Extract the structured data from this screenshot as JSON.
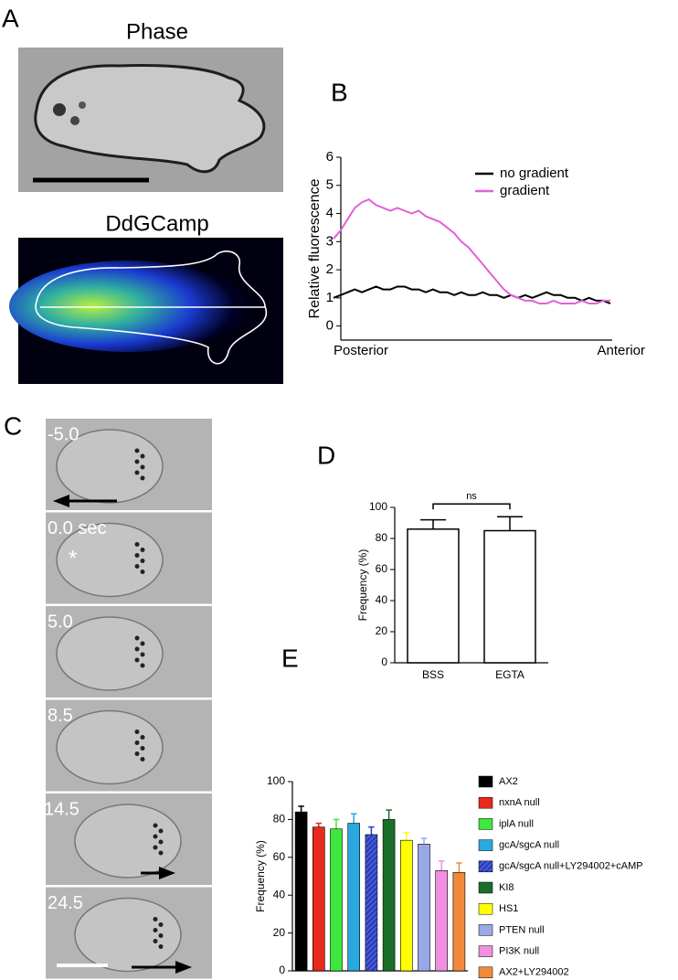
{
  "panel_labels": [
    "A",
    "B",
    "C",
    "D",
    "E"
  ],
  "panel_a": {
    "top_title": "Phase",
    "bottom_title": "DdGCamp"
  },
  "panel_c": {
    "times": [
      "-5.0",
      "0.0 sec",
      "5.0",
      "8.5",
      "14.5",
      "24.5"
    ],
    "marker": "*"
  },
  "chart_data": [
    {
      "type": "line",
      "y_label": "Relative fluorescence",
      "x_start_label": "Posterior",
      "x_end_label": "Anterior",
      "ylim": [
        -0.5,
        6
      ],
      "yticks": [
        0,
        1,
        2,
        3,
        4,
        5,
        6
      ],
      "series": [
        {
          "name": "no gradient",
          "color": "#000000",
          "values": [
            1.0,
            1.1,
            1.2,
            1.3,
            1.2,
            1.3,
            1.4,
            1.3,
            1.3,
            1.4,
            1.4,
            1.3,
            1.3,
            1.2,
            1.3,
            1.2,
            1.2,
            1.1,
            1.2,
            1.1,
            1.1,
            1.2,
            1.1,
            1.1,
            1.0,
            1.1,
            1.0,
            1.1,
            1.0,
            1.1,
            1.2,
            1.1,
            1.1,
            1.0,
            1.0,
            0.9,
            1.0,
            0.9,
            0.9,
            0.8
          ]
        },
        {
          "name": "gradient",
          "color": "#e060d8",
          "values": [
            3.1,
            3.4,
            3.8,
            4.2,
            4.4,
            4.5,
            4.3,
            4.2,
            4.1,
            4.2,
            4.1,
            4.0,
            4.1,
            3.9,
            3.8,
            3.7,
            3.5,
            3.3,
            3.0,
            2.8,
            2.5,
            2.2,
            1.9,
            1.6,
            1.3,
            1.1,
            1.0,
            0.9,
            0.9,
            0.8,
            0.8,
            0.9,
            0.8,
            0.8,
            0.8,
            0.9,
            0.8,
            0.8,
            0.9,
            0.9
          ]
        }
      ]
    },
    {
      "type": "bar",
      "y_label": "Frequency (%)",
      "categories": [
        "BSS",
        "EGTA"
      ],
      "values": [
        86,
        85
      ],
      "errors": [
        6,
        9
      ],
      "color": "#ffffff",
      "ylim": [
        0,
        100
      ],
      "yticks": [
        0,
        20,
        40,
        60,
        80,
        100
      ],
      "significance": "ns"
    },
    {
      "type": "bar",
      "y_label": "Frequency (%)",
      "categories": [
        "AX2",
        "nxnA null",
        "iplA null",
        "gcA/sgcA null",
        "gcA/sgcA null+LY294002+cAMP",
        "KI8",
        "HS1",
        "PTEN null",
        "PI3K null",
        "AX2+LY294002"
      ],
      "values": [
        84,
        76,
        75,
        78,
        72,
        80,
        69,
        67,
        53,
        52
      ],
      "errors": [
        3,
        2,
        5,
        5,
        4,
        5,
        4,
        3,
        5,
        5
      ],
      "colors": [
        "#000000",
        "#e8291c",
        "#3ee83e",
        "#2aa8e0",
        "#2b3fbf",
        "#1a6e2a",
        "#ffff00",
        "#9aa8e8",
        "#f090e0",
        "#f08a3a"
      ],
      "hatched": [
        false,
        false,
        false,
        false,
        true,
        false,
        false,
        false,
        false,
        false
      ],
      "ylim": [
        0,
        100
      ],
      "yticks": [
        0,
        20,
        40,
        60,
        80,
        100
      ]
    }
  ]
}
